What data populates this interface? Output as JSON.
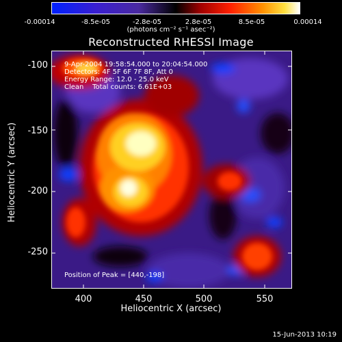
{
  "colorbar": {
    "ticks": [
      "-0.00014",
      "-8.5e-05",
      "-2.8e-05",
      "2.8e-05",
      "8.5e-05",
      "0.00014"
    ],
    "units": "(photons cm⁻² s⁻¹ asec⁻²)"
  },
  "title": "Reconstructed RHESSI Image",
  "annotations": {
    "time": "9-Apr-2004 19:58:54.000 to 20:04:54.000",
    "detectors": "Detectors: 4F 5F 6F 7F 8F, Att 0",
    "energy": "Energy Range: 12.0 - 25.0 keV",
    "clean": "Clean    Total counts: 6.61E+03",
    "peak": "Position of Peak = [440,-198]"
  },
  "axes": {
    "x_label": "Heliocentric X (arcsec)",
    "y_label": "Heliocentric Y (arcsec)",
    "x_ticks": [
      "400",
      "450",
      "500",
      "550"
    ],
    "y_ticks": [
      "-100",
      "-150",
      "-200",
      "-250"
    ]
  },
  "footer": "15-Jun-2013 10:19"
}
